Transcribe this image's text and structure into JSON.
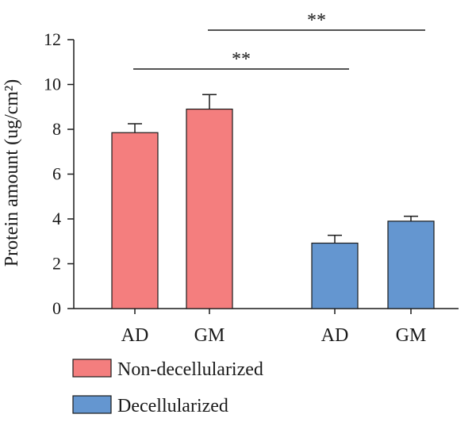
{
  "chart_data": {
    "type": "bar",
    "ylabel": "Protein amount (ug/cm²)",
    "ylim": [
      0,
      12
    ],
    "yticks": [
      0,
      2,
      4,
      6,
      8,
      10,
      12
    ],
    "bars": [
      {
        "category": "AD",
        "group": "Non-decellularized",
        "value": 7.85,
        "error": 0.4
      },
      {
        "category": "GM",
        "group": "Non-decellularized",
        "value": 8.9,
        "error": 0.65
      },
      {
        "category": "AD",
        "group": "Decellularized",
        "value": 2.92,
        "error": 0.35
      },
      {
        "category": "GM",
        "group": "Decellularized",
        "value": 3.9,
        "error": 0.22
      }
    ],
    "significance": [
      {
        "from": 0,
        "to": 2,
        "label": "**"
      },
      {
        "from": 1,
        "to": 3,
        "label": "**"
      }
    ],
    "legend": [
      {
        "name": "Non-decellularized",
        "color": "#f47e7e"
      },
      {
        "name": "Decellularized",
        "color": "#6496d0"
      }
    ],
    "legend_position": "bottom-left",
    "grid": false
  }
}
